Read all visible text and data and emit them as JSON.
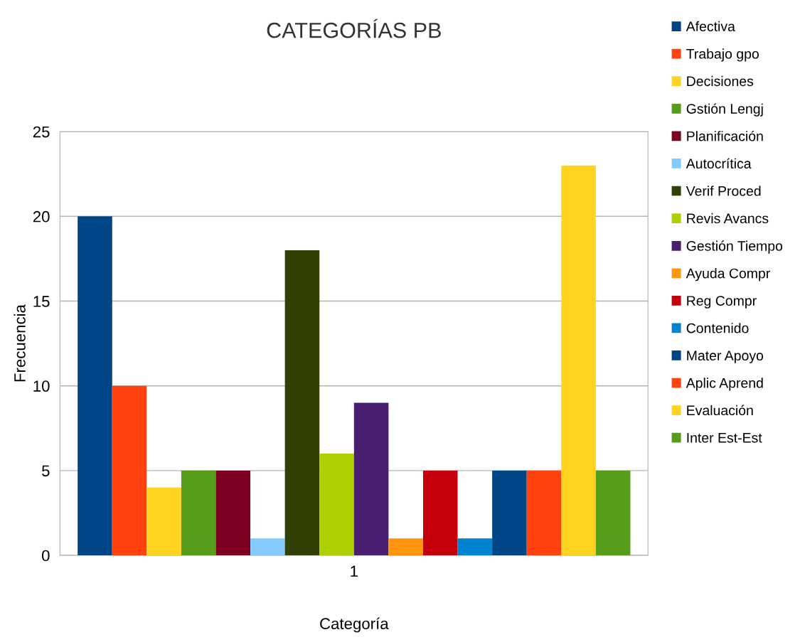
{
  "chart_data": {
    "type": "bar",
    "title": "CATEGORÍAS PB",
    "xlabel": "Categoría",
    "ylabel": "Frecuencia",
    "categories": [
      "1"
    ],
    "ylim": [
      0,
      25
    ],
    "yticks": [
      0,
      5,
      10,
      15,
      20,
      25
    ],
    "grid": "y",
    "legend": "right",
    "series": [
      {
        "name": "Afectiva",
        "color": "#004586",
        "values": [
          20
        ]
      },
      {
        "name": "Trabajo gpo",
        "color": "#ff420e",
        "values": [
          10
        ]
      },
      {
        "name": "Decisiones",
        "color": "#ffd320",
        "values": [
          4
        ]
      },
      {
        "name": "Gstión Lengj",
        "color": "#579d1c",
        "values": [
          5
        ]
      },
      {
        "name": "Planificación",
        "color": "#7e0021",
        "values": [
          5
        ]
      },
      {
        "name": "Autocrítica",
        "color": "#83caff",
        "values": [
          1
        ]
      },
      {
        "name": "Verif Proced",
        "color": "#314004",
        "values": [
          18
        ]
      },
      {
        "name": "Revis Avancs",
        "color": "#aecf00",
        "values": [
          6
        ]
      },
      {
        "name": "Gestión Tiempo",
        "color": "#4b1f6f",
        "values": [
          9
        ]
      },
      {
        "name": "Ayuda Compr",
        "color": "#ff950e",
        "values": [
          1
        ]
      },
      {
        "name": "Reg Compr",
        "color": "#c5000b",
        "values": [
          5
        ]
      },
      {
        "name": "Contenido",
        "color": "#0084d1",
        "values": [
          1
        ]
      },
      {
        "name": "Mater Apoyo",
        "color": "#004586",
        "values": [
          5
        ]
      },
      {
        "name": "Aplic Aprend",
        "color": "#ff420e",
        "values": [
          5
        ]
      },
      {
        "name": "Evaluación",
        "color": "#ffd320",
        "values": [
          23
        ]
      },
      {
        "name": "Inter Est-Est",
        "color": "#579d1c",
        "values": [
          5
        ]
      }
    ]
  }
}
